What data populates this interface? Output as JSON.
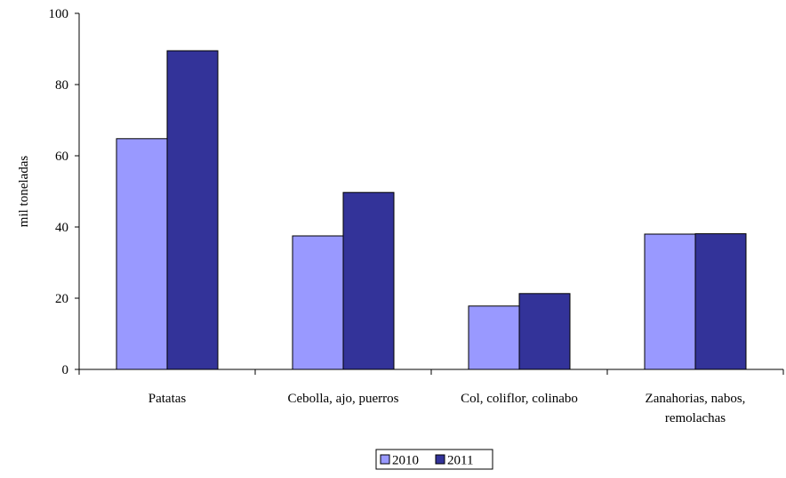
{
  "chart_data": {
    "type": "bar",
    "title": "",
    "xlabel": "",
    "ylabel": "mil toneladas",
    "ylim": [
      0,
      100
    ],
    "yticks": [
      0,
      20,
      40,
      60,
      80,
      100
    ],
    "categories": [
      [
        "Patatas"
      ],
      [
        "Cebolla, ajo, puerros"
      ],
      [
        "Col, coliflor, colinabo"
      ],
      [
        "Zanahorias, nabos,",
        "remolachas"
      ]
    ],
    "series": [
      {
        "name": "2010",
        "color": "#9999ff",
        "values": [
          64.8,
          37.5,
          17.8,
          38.0
        ]
      },
      {
        "name": "2011",
        "color": "#333399",
        "values": [
          89.5,
          49.7,
          21.3,
          38.1
        ]
      }
    ],
    "grid": false,
    "legend_position": "bottom"
  }
}
